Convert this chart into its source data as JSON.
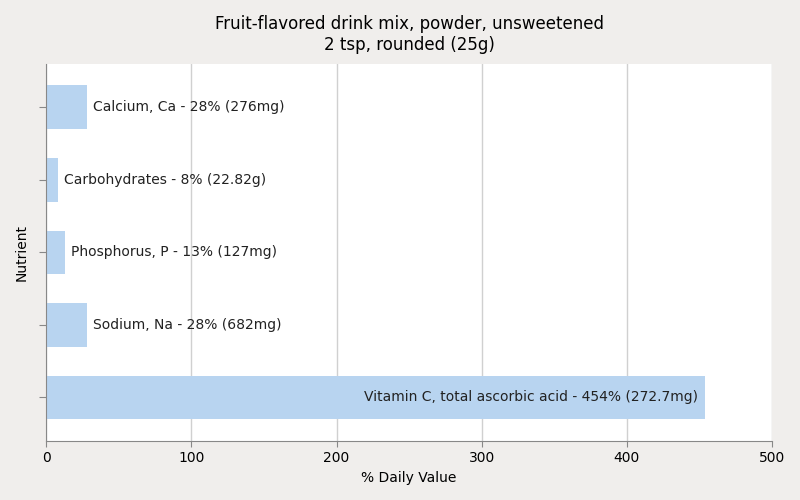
{
  "title": "Fruit-flavored drink mix, powder, unsweetened\n2 tsp, rounded (25g)",
  "nutrients": [
    "Vitamin C, total ascorbic acid - 454% (272.7mg)",
    "Sodium, Na - 28% (682mg)",
    "Phosphorus, P - 13% (127mg)",
    "Carbohydrates - 8% (22.82g)",
    "Calcium, Ca - 28% (276mg)"
  ],
  "values": [
    454,
    28,
    13,
    8,
    28
  ],
  "bar_color": "#b8d4f0",
  "xlabel": "% Daily Value",
  "ylabel": "Nutrient",
  "xlim": [
    0,
    500
  ],
  "xticks": [
    0,
    100,
    200,
    300,
    400,
    500
  ],
  "background_color": "#f0eeec",
  "axes_background": "#ffffff",
  "title_fontsize": 12,
  "label_fontsize": 10,
  "tick_fontsize": 10,
  "grid_color": "#d0d0d0",
  "text_color": "#222222",
  "bar_height": 0.6
}
